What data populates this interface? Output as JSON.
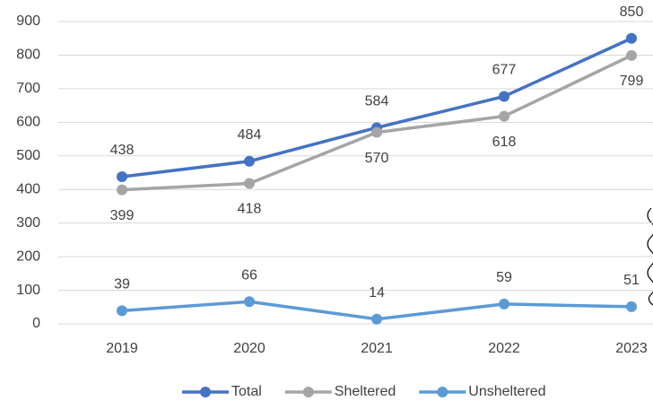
{
  "chart_data": {
    "type": "line",
    "categories": [
      "2019",
      "2020",
      "2021",
      "2022",
      "2023"
    ],
    "series": [
      {
        "name": "Total",
        "color": "#4472c4",
        "values": [
          438,
          484,
          584,
          677,
          850
        ]
      },
      {
        "name": "Sheltered",
        "color": "#a5a5a5",
        "values": [
          399,
          418,
          570,
          618,
          799
        ]
      },
      {
        "name": "Unsheltered",
        "color": "#5b9bd5",
        "values": [
          39,
          66,
          14,
          59,
          51
        ]
      }
    ],
    "ylim": [
      0,
      900
    ],
    "yticks": [
      0,
      100,
      200,
      300,
      400,
      500,
      600,
      700,
      800,
      900
    ],
    "grid": true,
    "legend": "bottom"
  }
}
